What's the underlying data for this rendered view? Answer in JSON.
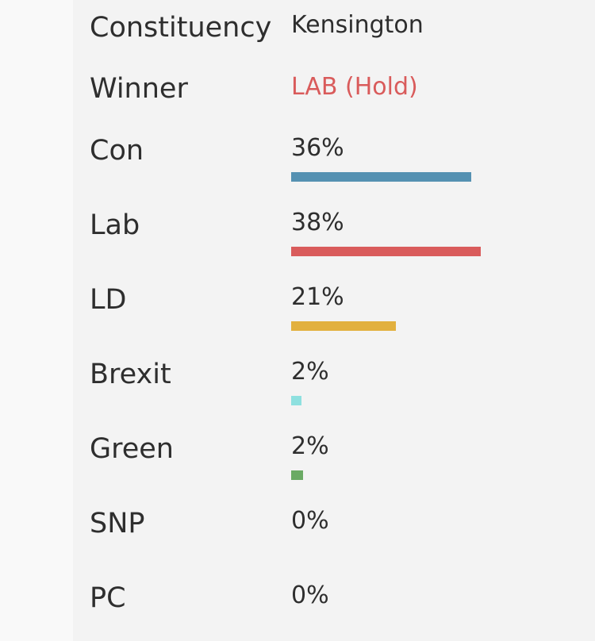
{
  "header": {
    "constituency_label": "Constituency",
    "constituency_value": "Kensington",
    "winner_label": "Winner",
    "winner_value": "LAB (Hold)",
    "winner_color": "#d95b5b"
  },
  "chart_data": {
    "type": "bar",
    "orientation": "horizontal",
    "categories": [
      "Con",
      "Lab",
      "LD",
      "Brexit",
      "Green",
      "SNP",
      "PC"
    ],
    "values": [
      36,
      38,
      21,
      2,
      2,
      0,
      0
    ],
    "value_labels": [
      "36%",
      "38%",
      "21%",
      "2%",
      "2%",
      "0%",
      "0%"
    ],
    "colors": [
      "#5591b2",
      "#d95b5b",
      "#e2b03e",
      "#8ee0df",
      "#6aaa64",
      "#f5cf3a",
      "#4a8f5d"
    ],
    "unit": "%"
  }
}
